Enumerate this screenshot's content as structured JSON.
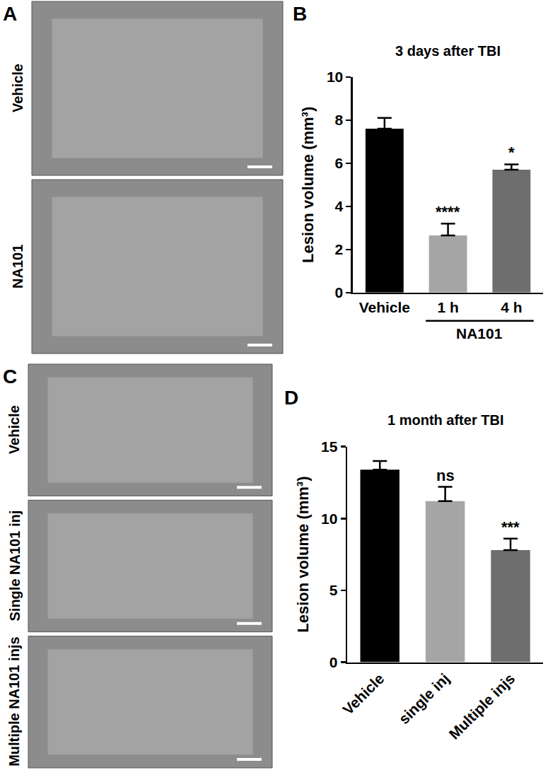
{
  "panels": [
    {
      "label": "A",
      "rows": [
        "Vehicle",
        "NA101"
      ]
    },
    {
      "label": "C",
      "rows": [
        "Vehicle",
        "Single NA101 inj",
        "Multiple NA101 injs"
      ]
    }
  ],
  "chart_data": [
    {
      "type": "bar",
      "panel_label": "B",
      "title": "3 days after TBI",
      "ylabel": "Lesion volume (mm³)",
      "categories": [
        "Vehicle",
        "1 h",
        "4 h"
      ],
      "values": [
        7.6,
        2.65,
        5.7
      ],
      "errors": [
        0.5,
        0.55,
        0.25
      ],
      "colors": [
        "#000000",
        "#a6a6a6",
        "#6e6e6e"
      ],
      "significance": [
        null,
        "****",
        "*"
      ],
      "group_label": {
        "text": "NA101",
        "categories": [
          "1 h",
          "4 h"
        ]
      },
      "ylim": [
        0,
        10
      ],
      "yticks": [
        0,
        2,
        4,
        6,
        8,
        10
      ]
    },
    {
      "type": "bar",
      "panel_label": "D",
      "title": "1 month after TBI",
      "ylabel": "Lesion volume (mm³)",
      "categories": [
        "Vehicle",
        "single inj",
        "Multiple injs"
      ],
      "values": [
        13.4,
        11.2,
        7.8
      ],
      "errors": [
        0.6,
        1.0,
        0.8
      ],
      "colors": [
        "#000000",
        "#a6a6a6",
        "#6e6e6e"
      ],
      "significance": [
        null,
        "ns",
        "***"
      ],
      "ylim": [
        0,
        15
      ],
      "yticks": [
        0,
        5,
        10,
        15
      ]
    }
  ]
}
